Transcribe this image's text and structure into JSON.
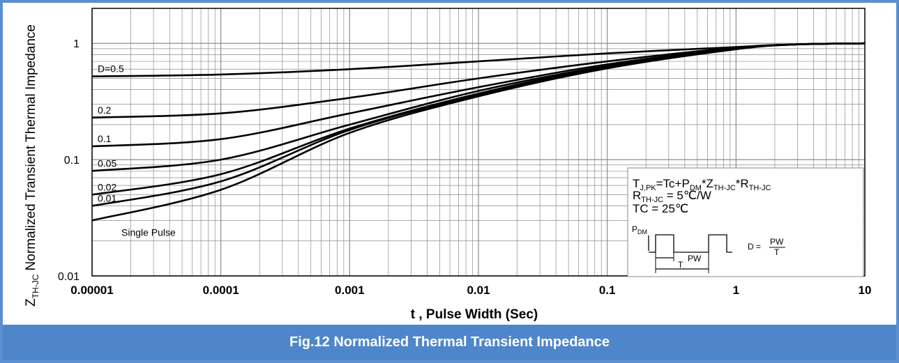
{
  "caption": "Fig.12 Normalized Thermal Transient Impedance",
  "chart_data": {
    "type": "line",
    "title": "",
    "xlabel": "t , Pulse Width (Sec)",
    "ylabel_main": "Z",
    "ylabel_sub": "TH-JC",
    "ylabel_rest": " Normalized Transient Thermal Impedance",
    "xscale": "log",
    "yscale": "log",
    "xlim": [
      1e-05,
      10
    ],
    "ylim": [
      0.01,
      2
    ],
    "grid": true,
    "x_ticks": [
      {
        "v": 1e-05,
        "label": "0.00001"
      },
      {
        "v": 0.0001,
        "label": "0.0001"
      },
      {
        "v": 0.001,
        "label": "0.001"
      },
      {
        "v": 0.01,
        "label": "0.01"
      },
      {
        "v": 0.1,
        "label": "0.1"
      },
      {
        "v": 1,
        "label": "1"
      },
      {
        "v": 10,
        "label": "10"
      }
    ],
    "y_ticks": [
      {
        "v": 0.01,
        "label": "0.01"
      },
      {
        "v": 0.1,
        "label": "0.1"
      },
      {
        "v": 1,
        "label": "1"
      }
    ],
    "series": [
      {
        "name": "D=0.5",
        "x": [
          1e-05,
          0.0001,
          0.001,
          0.01,
          0.1,
          1,
          3,
          10
        ],
        "y": [
          0.52,
          0.54,
          0.6,
          0.7,
          0.82,
          0.93,
          0.98,
          1.0
        ]
      },
      {
        "name": "0.2",
        "x": [
          1e-05,
          0.0001,
          0.001,
          0.01,
          0.1,
          1,
          3,
          10
        ],
        "y": [
          0.23,
          0.25,
          0.34,
          0.5,
          0.7,
          0.92,
          0.98,
          1.0
        ]
      },
      {
        "name": "0.1",
        "x": [
          1e-05,
          0.0001,
          0.001,
          0.01,
          0.1,
          1,
          3,
          10
        ],
        "y": [
          0.13,
          0.15,
          0.25,
          0.42,
          0.66,
          0.91,
          0.98,
          1.0
        ]
      },
      {
        "name": "0.05",
        "x": [
          1e-05,
          0.0001,
          0.001,
          0.01,
          0.1,
          1,
          3,
          10
        ],
        "y": [
          0.08,
          0.1,
          0.2,
          0.39,
          0.64,
          0.9,
          0.98,
          1.0
        ]
      },
      {
        "name": "0.02",
        "x": [
          1e-05,
          0.0001,
          0.001,
          0.01,
          0.1,
          1,
          3,
          10
        ],
        "y": [
          0.05,
          0.075,
          0.185,
          0.37,
          0.63,
          0.9,
          0.98,
          1.0
        ]
      },
      {
        "name": "0.01",
        "x": [
          1e-05,
          0.0001,
          0.001,
          0.01,
          0.1,
          1,
          3,
          10
        ],
        "y": [
          0.04,
          0.065,
          0.18,
          0.36,
          0.62,
          0.9,
          0.98,
          1.0
        ]
      },
      {
        "name": "Single Pulse",
        "x": [
          1e-05,
          0.0001,
          0.001,
          0.01,
          0.1,
          1,
          3,
          10
        ],
        "y": [
          0.03,
          0.055,
          0.17,
          0.35,
          0.61,
          0.89,
          0.98,
          1.0
        ]
      }
    ],
    "annotation_box": {
      "line1": {
        "a": "T",
        "a_sub": "J,PK",
        "b": "=Tc+P",
        "b_sub": "DM",
        "c": "*Z",
        "c_sub": "TH-JC",
        "d": "*R",
        "d_sub": "TH-JC"
      },
      "line2": {
        "a": "R",
        "a_sub": "TH-JC",
        "b": " = 5℃/W"
      },
      "line3": "TC = 25℃",
      "pulse_label_main": "P",
      "pulse_label_sub": "DM",
      "pw_label": "PW",
      "t_label": "T",
      "duty_label": "D = ",
      "duty_num": "PW",
      "duty_den": "T"
    }
  }
}
